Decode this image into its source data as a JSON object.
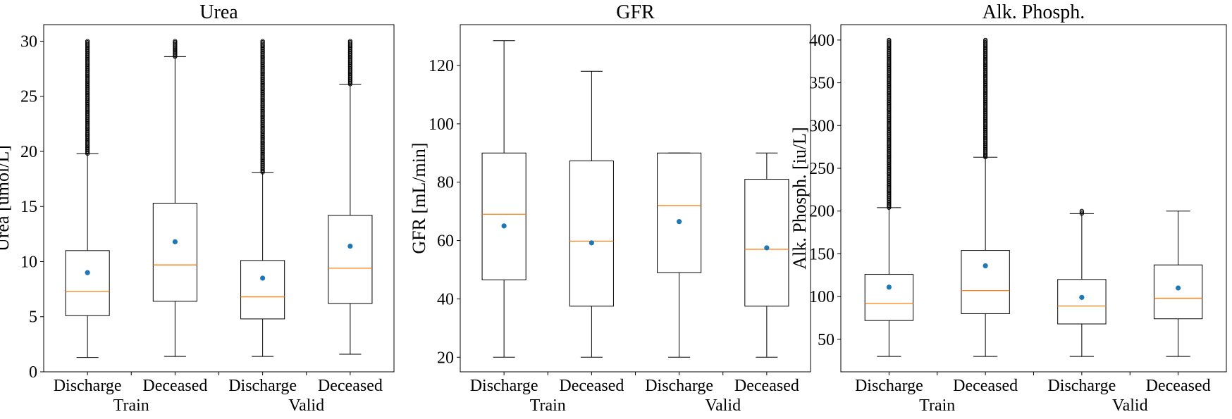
{
  "chart_data": [
    {
      "type": "box",
      "title": "Urea",
      "ylabel": "Urea [umol/L]",
      "ylim": [
        0,
        31.5
      ],
      "yticks": [
        0,
        5,
        10,
        15,
        20,
        25,
        30
      ],
      "categories": [
        "Discharge",
        "Deceased",
        "Discharge",
        "Deceased"
      ],
      "groups": [
        {
          "label": "Train",
          "span": [
            0,
            1
          ]
        },
        {
          "label": "Valid",
          "span": [
            2,
            3
          ]
        }
      ],
      "boxes": [
        {
          "whislo": 1.3,
          "q1": 5.1,
          "med": 7.3,
          "mean": 9.0,
          "q3": 11.0,
          "whishi": 19.8,
          "flier_range": [
            19.8,
            30.0
          ]
        },
        {
          "whislo": 1.4,
          "q1": 6.4,
          "med": 9.7,
          "mean": 11.8,
          "q3": 15.3,
          "whishi": 28.6,
          "flier_range": [
            28.6,
            30.0
          ]
        },
        {
          "whislo": 1.4,
          "q1": 4.8,
          "med": 6.8,
          "mean": 8.5,
          "q3": 10.1,
          "whishi": 18.1,
          "flier_range": [
            18.1,
            30.0
          ]
        },
        {
          "whislo": 1.6,
          "q1": 6.2,
          "med": 9.4,
          "mean": 11.4,
          "q3": 14.2,
          "whishi": 26.1,
          "flier_range": [
            26.1,
            30.0
          ]
        }
      ]
    },
    {
      "type": "box",
      "title": "GFR",
      "ylabel": "GFR [mL/min]",
      "ylim": [
        15,
        134
      ],
      "yticks": [
        20,
        40,
        60,
        80,
        100,
        120
      ],
      "categories": [
        "Discharge",
        "Deceased",
        "Discharge",
        "Deceased"
      ],
      "groups": [
        {
          "label": "Train",
          "span": [
            0,
            1
          ]
        },
        {
          "label": "Valid",
          "span": [
            2,
            3
          ]
        }
      ],
      "boxes": [
        {
          "whislo": 20,
          "q1": 46.5,
          "med": 69,
          "mean": 65,
          "q3": 90,
          "whishi": 128.5,
          "flier_range": null
        },
        {
          "whislo": 20,
          "q1": 37.5,
          "med": 59.8,
          "mean": 59.2,
          "q3": 87.3,
          "whishi": 118,
          "flier_range": null
        },
        {
          "whislo": 20,
          "q1": 49,
          "med": 72,
          "mean": 66.5,
          "q3": 90,
          "whishi": 90,
          "flier_range": null
        },
        {
          "whislo": 20,
          "q1": 37.5,
          "med": 57,
          "mean": 57.5,
          "q3": 81,
          "whishi": 90,
          "flier_range": null
        }
      ]
    },
    {
      "type": "box",
      "title": "Alk. Phosph.",
      "ylabel": "Alk. Phosph. [iu/L]",
      "ylim": [
        12,
        418
      ],
      "yticks": [
        50,
        100,
        150,
        200,
        250,
        300,
        350,
        400
      ],
      "categories": [
        "Discharge",
        "Deceased",
        "Discharge",
        "Deceased"
      ],
      "groups": [
        {
          "label": "Train",
          "span": [
            0,
            1
          ]
        },
        {
          "label": "Valid",
          "span": [
            2,
            3
          ]
        }
      ],
      "boxes": [
        {
          "whislo": 30,
          "q1": 72,
          "med": 92,
          "mean": 111,
          "q3": 126,
          "whishi": 204,
          "flier_range": [
            204,
            400
          ]
        },
        {
          "whislo": 30,
          "q1": 80,
          "med": 107,
          "mean": 136,
          "q3": 154,
          "whishi": 263,
          "flier_range": [
            263,
            400
          ]
        },
        {
          "whislo": 30,
          "q1": 68,
          "med": 89,
          "mean": 99,
          "q3": 120,
          "whishi": 197,
          "flier_range": [
            197,
            200
          ]
        },
        {
          "whislo": 30,
          "q1": 74,
          "med": 98,
          "mean": 110,
          "q3": 137,
          "whishi": 200,
          "flier_range": null
        }
      ]
    }
  ],
  "colors": {
    "median": "#ff7f0e",
    "mean": "#1f77b4",
    "box": "#000000"
  }
}
